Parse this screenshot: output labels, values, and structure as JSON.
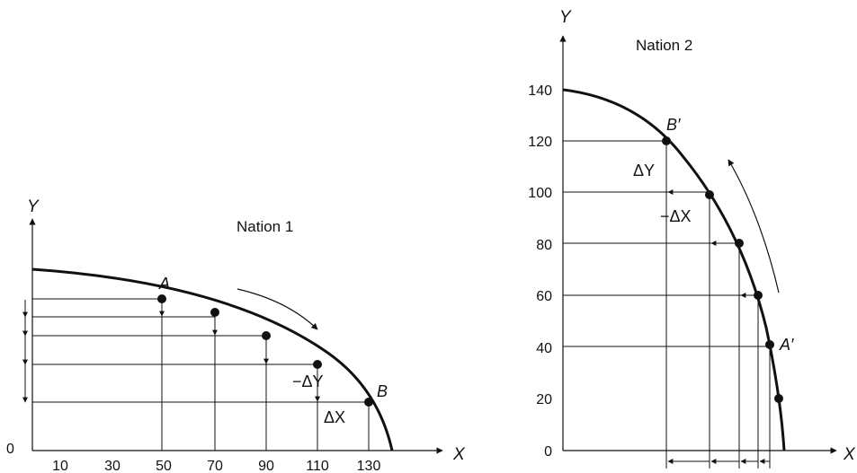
{
  "nation1": {
    "title": "Nation 1",
    "x_axis_label": "X",
    "y_axis_label": "Y",
    "origin_label": "0",
    "x_ticks": [
      "10",
      "30",
      "50",
      "70",
      "90",
      "110",
      "130"
    ],
    "point_a_label": "A",
    "point_b_label": "B",
    "delta_y_label": "−ΔY",
    "delta_x_label": "ΔX",
    "curve_points": [
      [
        50,
        54
      ],
      [
        70,
        47
      ],
      [
        90,
        37
      ],
      [
        110,
        26
      ],
      [
        130,
        12
      ]
    ]
  },
  "nation2": {
    "title": "Nation 2",
    "x_axis_label": "X",
    "y_axis_label": "Y",
    "y_ticks": [
      "140",
      "120",
      "100",
      "80",
      "60",
      "40",
      "20",
      "0"
    ],
    "point_b_label": "B′",
    "point_a_label": "A′",
    "delta_y_label": "ΔY",
    "delta_x_label": "−ΔX",
    "curve_points": [
      [
        120
      ],
      [
        100
      ],
      [
        80
      ],
      [
        60
      ],
      [
        40
      ],
      [
        20
      ]
    ]
  },
  "colors": {
    "ink": "#111111",
    "background": "#ffffff"
  }
}
